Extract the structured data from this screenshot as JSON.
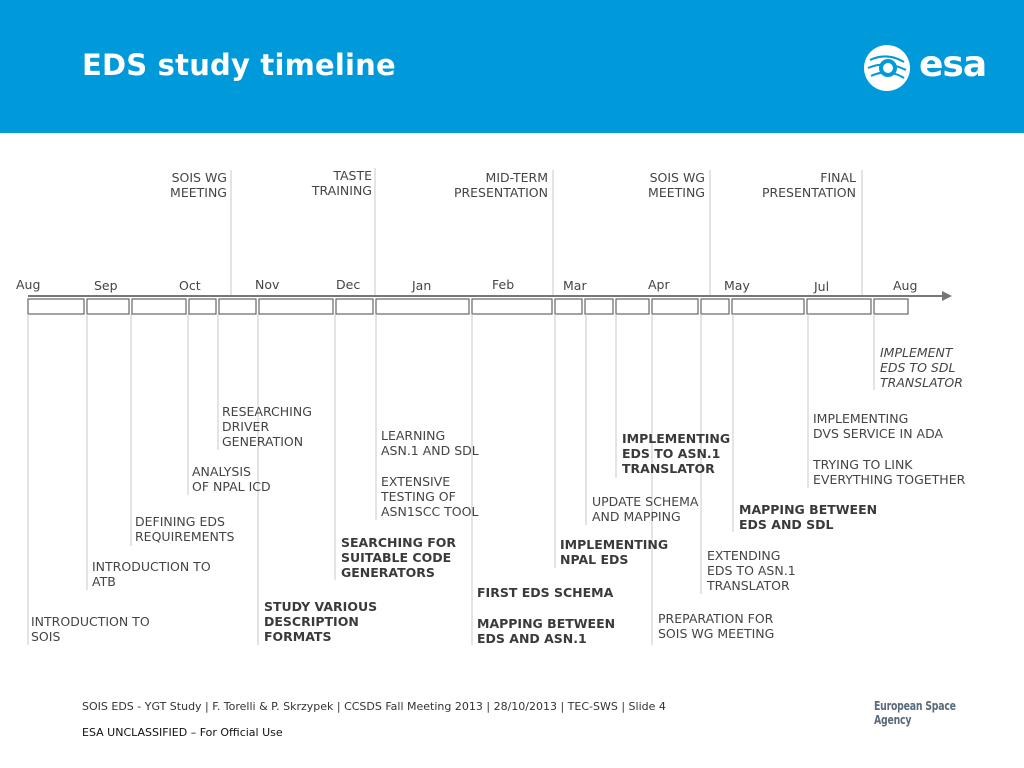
{
  "header": {
    "title": "EDS study timeline",
    "logo_text": "esa",
    "background": "#0099d9"
  },
  "milestones": [
    {
      "label": "SOIS WG\nMEETING"
    },
    {
      "label": "TASTE\nTRAINING"
    },
    {
      "label": "MID-TERM\nPRESENTATION"
    },
    {
      "label": "SOIS WG\nMEETING"
    },
    {
      "label": "FINAL\nPRESENTATION"
    }
  ],
  "months": [
    "Aug",
    "Sep",
    "Oct",
    "Nov",
    "Dec",
    "Jan",
    "Feb",
    "Mar",
    "Apr",
    "May",
    "Jul",
    "Aug"
  ],
  "tasks": [
    {
      "label": "INTRODUCTION TO\nSOIS",
      "bold": false
    },
    {
      "label": "INTRODUCTION TO\nATB",
      "bold": false
    },
    {
      "label": "DEFINING EDS\nREQUIREMENTS",
      "bold": false
    },
    {
      "label": "ANALYSIS\nOF NPAL ICD",
      "bold": false
    },
    {
      "label": "RESEARCHING\nDRIVER\nGENERATION",
      "bold": false
    },
    {
      "label": "STUDY VARIOUS\nDESCRIPTION\nFORMATS",
      "bold": true
    },
    {
      "label": "SEARCHING FOR\nSUITABLE CODE\nGENERATORS",
      "bold": true
    },
    {
      "label": "LEARNING\nASN.1 AND SDL",
      "bold": false
    },
    {
      "label": "EXTENSIVE\nTESTING OF\nASN1SCC TOOL",
      "bold": false
    },
    {
      "label": "FIRST EDS SCHEMA",
      "bold": true
    },
    {
      "label": "MAPPING BETWEEN\nEDS AND ASN.1",
      "bold": true
    },
    {
      "label": "IMPLEMENTING\nNPAL EDS",
      "bold": true
    },
    {
      "label": "UPDATE SCHEMA\nAND MAPPING",
      "bold": false
    },
    {
      "label": "IMPLEMENTING\nEDS TO ASN.1\nTRANSLATOR",
      "bold": true
    },
    {
      "label": "PREPARATION FOR\nSOIS WG MEETING",
      "bold": false
    },
    {
      "label": "EXTENDING\nEDS TO ASN.1\nTRANSLATOR",
      "bold": false
    },
    {
      "label": "MAPPING BETWEEN\nEDS AND SDL",
      "bold": true
    },
    {
      "label": "IMPLEMENTING\nDVS SERVICE IN ADA",
      "bold": false
    },
    {
      "label": "TRYING TO LINK\nEVERYTHING TOGETHER",
      "bold": false
    },
    {
      "label": "IMPLEMENT\nEDS TO SDL\nTRANSLATOR",
      "bold": false,
      "italic": true
    }
  ],
  "footer": {
    "line1": "SOIS EDS - YGT Study | F. Torelli & P. Skrzypek | CCSDS Fall Meeting 2013 | 28/10/2013 | TEC-SWS | Slide  4",
    "line2": "ESA UNCLASSIFIED – For Official Use",
    "agency": "European Space Agency"
  }
}
